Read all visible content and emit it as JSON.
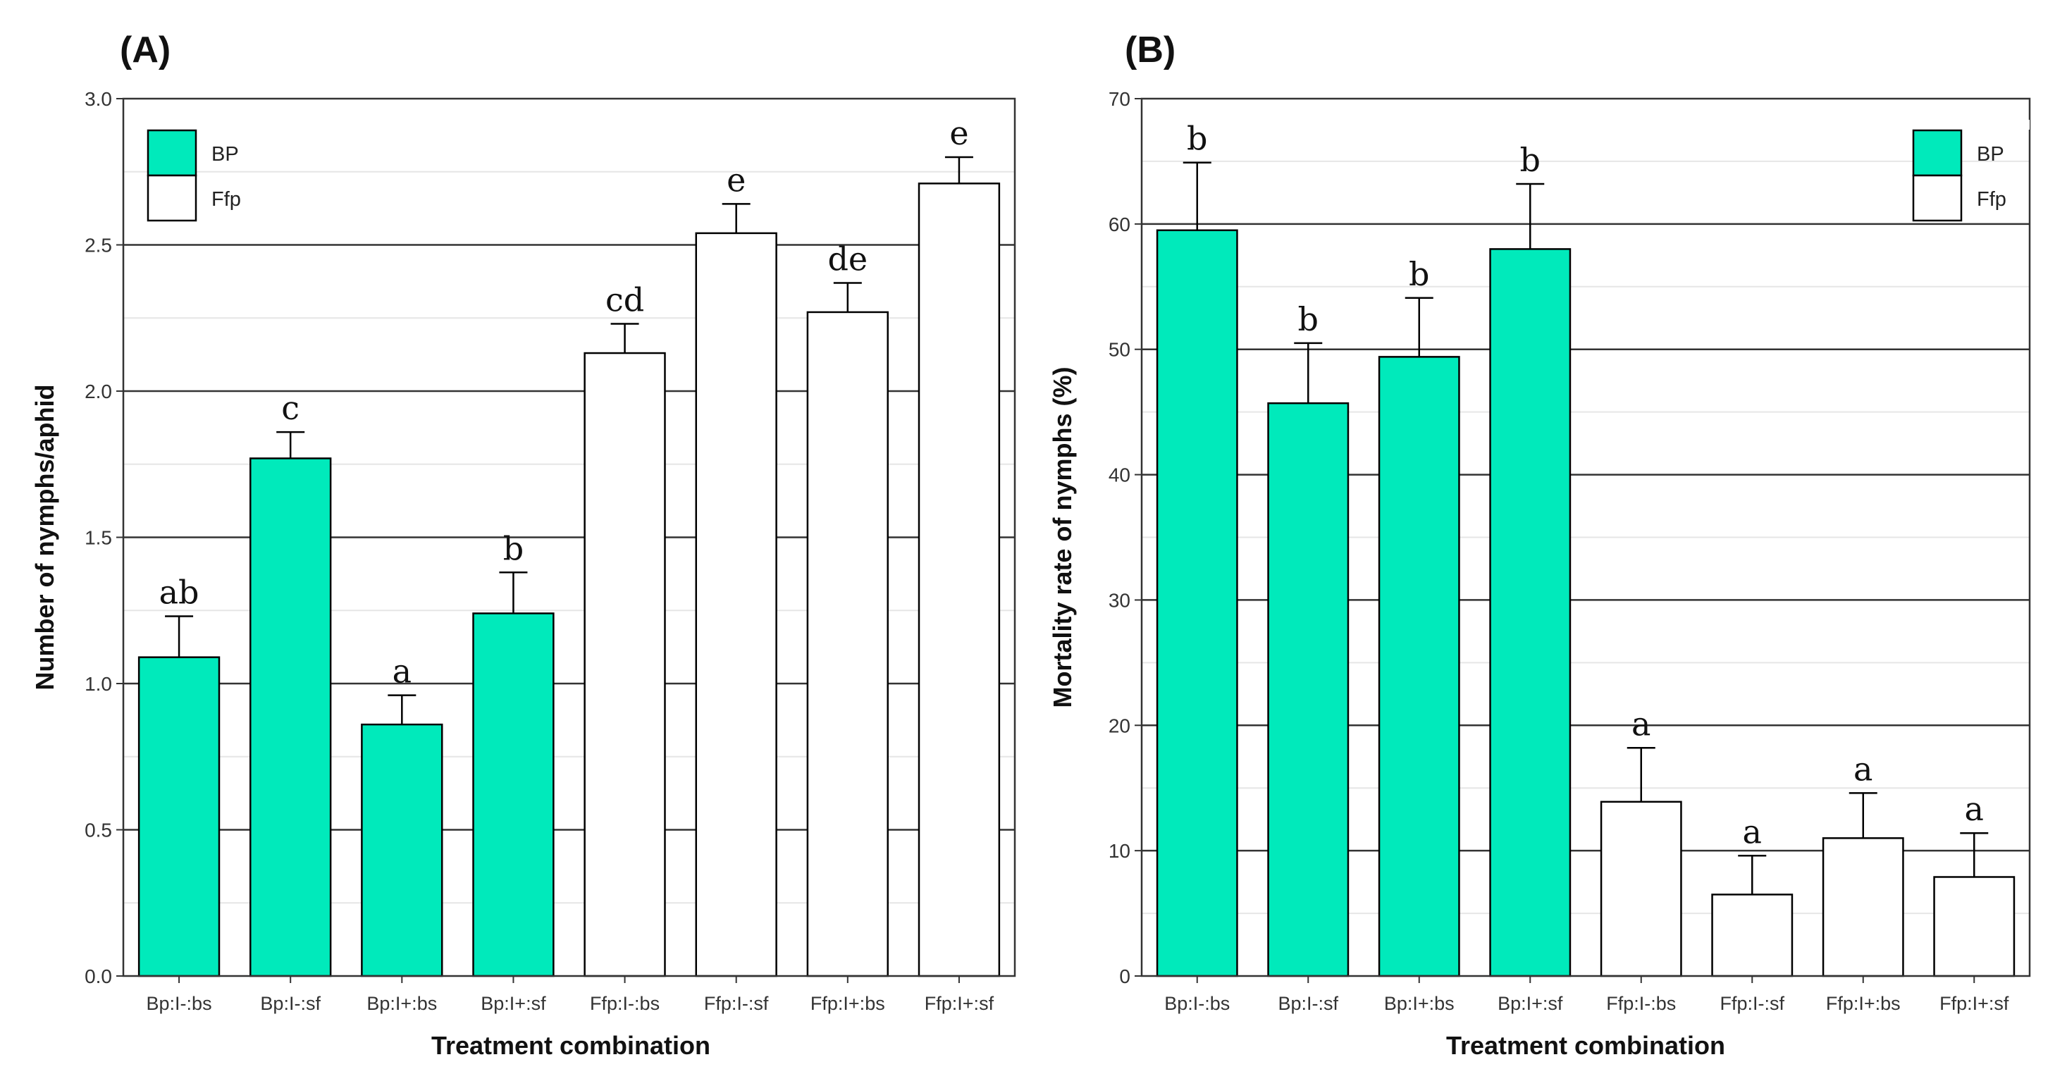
{
  "colors": {
    "bp": "#00EABB",
    "ffp": "#FFFFFF",
    "stroke": "#000000",
    "major_grid": "#333333",
    "minor_grid": "#e6e6e6"
  },
  "chart_data": [
    {
      "type": "bar",
      "panel_label": "(A)",
      "title": "",
      "xlabel": "Treatment combination",
      "ylabel": "Number of nymphs/aphid",
      "ylim": [
        0,
        3.0
      ],
      "yticks": [
        "0.0",
        "0.5",
        "1.0",
        "1.5",
        "2.0",
        "2.5",
        "3.0"
      ],
      "categories": [
        "Bp:I-:bs",
        "Bp:I-:sf",
        "Bp:I+:bs",
        "Bp:I+:sf",
        "Ffp:I-:bs",
        "Ffp:I-:sf",
        "Ffp:I+:bs",
        "Ffp:I+:sf"
      ],
      "values": [
        1.09,
        1.77,
        0.86,
        1.24,
        2.13,
        2.54,
        2.27,
        2.71
      ],
      "errors": [
        0.14,
        0.09,
        0.1,
        0.14,
        0.1,
        0.1,
        0.1,
        0.09
      ],
      "letters": [
        "ab",
        "c",
        "a",
        "b",
        "cd",
        "e",
        "de",
        "e"
      ],
      "groups": [
        "BP",
        "BP",
        "BP",
        "BP",
        "Ffp",
        "Ffp",
        "Ffp",
        "Ffp"
      ],
      "legend": [
        "BP",
        "Ffp"
      ],
      "legend_position": "top-left",
      "grid": true
    },
    {
      "type": "bar",
      "panel_label": "(B)",
      "title": "",
      "xlabel": "Treatment combination",
      "ylabel": "Mortality rate of nymphs (%)",
      "ylim": [
        0,
        70
      ],
      "yticks": [
        "0",
        "10",
        "20",
        "30",
        "40",
        "50",
        "60",
        "70"
      ],
      "categories": [
        "Bp:I-:bs",
        "Bp:I-:sf",
        "Bp:I+:bs",
        "Bp:I+:sf",
        "Ffp:I-:bs",
        "Ffp:I-:sf",
        "Ffp:I+:bs",
        "Ffp:I+:sf"
      ],
      "values": [
        59.5,
        45.7,
        49.4,
        58.0,
        13.9,
        6.5,
        11.0,
        7.9
      ],
      "errors": [
        5.4,
        4.8,
        4.7,
        5.2,
        4.3,
        3.1,
        3.6,
        3.5
      ],
      "letters": [
        "b",
        "b",
        "b",
        "b",
        "a",
        "a",
        "a",
        "a"
      ],
      "groups": [
        "BP",
        "BP",
        "BP",
        "BP",
        "Ffp",
        "Ffp",
        "Ffp",
        "Ffp"
      ],
      "legend": [
        "BP",
        "Ffp"
      ],
      "legend_position": "top-right",
      "grid": true
    }
  ]
}
